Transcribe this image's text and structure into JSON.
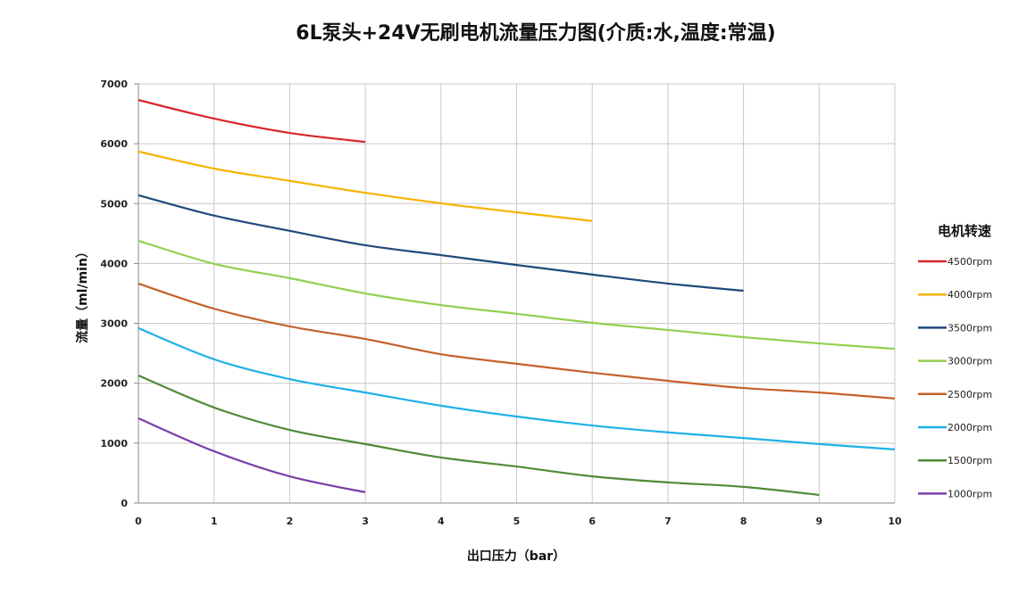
{
  "chart_data": {
    "type": "line",
    "title": "6L泵头+24V无刷电机流量压力图(介质:水,温度:常温)",
    "xlabel": "出口压力（bar）",
    "ylabel": "流量（ml/min）",
    "xlim": [
      0,
      10
    ],
    "ylim": [
      0,
      7000
    ],
    "xticks": [
      0,
      1,
      2,
      3,
      4,
      5,
      6,
      7,
      8,
      9,
      10
    ],
    "yticks": [
      0,
      1000,
      2000,
      3000,
      4000,
      5000,
      6000,
      7000
    ],
    "grid": true,
    "legend": {
      "title": "电机转速",
      "placement": "right"
    },
    "series": [
      {
        "name": "4500rpm",
        "color": "#d9262b",
        "x": [
          0,
          1,
          2,
          3
        ],
        "y": [
          6730,
          6420,
          6180,
          6030
        ]
      },
      {
        "name": "4000rpm",
        "color": "#f5b400",
        "x": [
          0,
          1,
          2,
          3,
          4,
          5,
          6
        ],
        "y": [
          5870,
          5585,
          5380,
          5180,
          5005,
          4855,
          4710
        ]
      },
      {
        "name": "3500rpm",
        "color": "#1f497d",
        "x": [
          0,
          1,
          2,
          3,
          4,
          5,
          6,
          7,
          8
        ],
        "y": [
          5140,
          4800,
          4545,
          4305,
          4140,
          3975,
          3815,
          3665,
          3545
        ]
      },
      {
        "name": "3000rpm",
        "color": "#92d050",
        "x": [
          0,
          1,
          2,
          3,
          4,
          5,
          6,
          7,
          8,
          9,
          10
        ],
        "y": [
          4380,
          3995,
          3755,
          3500,
          3305,
          3160,
          3010,
          2890,
          2770,
          2665,
          2575
        ]
      },
      {
        "name": "2500rpm",
        "color": "#c5612b",
        "x": [
          0,
          1,
          2,
          3,
          4,
          5,
          6,
          7,
          8,
          9,
          10
        ],
        "y": [
          3665,
          3245,
          2950,
          2740,
          2485,
          2325,
          2175,
          2040,
          1920,
          1845,
          1745
        ]
      },
      {
        "name": "2000rpm",
        "color": "#1eb1e8",
        "x": [
          0,
          1,
          2,
          3,
          4,
          5,
          6,
          7,
          8,
          9,
          10
        ],
        "y": [
          2920,
          2400,
          2070,
          1845,
          1625,
          1445,
          1295,
          1180,
          1085,
          985,
          895
        ]
      },
      {
        "name": "1500rpm",
        "color": "#4f8a36",
        "x": [
          0,
          1,
          2,
          3,
          4,
          5,
          6,
          7,
          8,
          9
        ],
        "y": [
          2130,
          1595,
          1220,
          985,
          760,
          610,
          445,
          345,
          270,
          135
        ]
      },
      {
        "name": "1000rpm",
        "color": "#7a3fa8",
        "x": [
          0,
          1,
          2,
          3
        ],
        "y": [
          1415,
          865,
          445,
          180
        ]
      }
    ]
  }
}
